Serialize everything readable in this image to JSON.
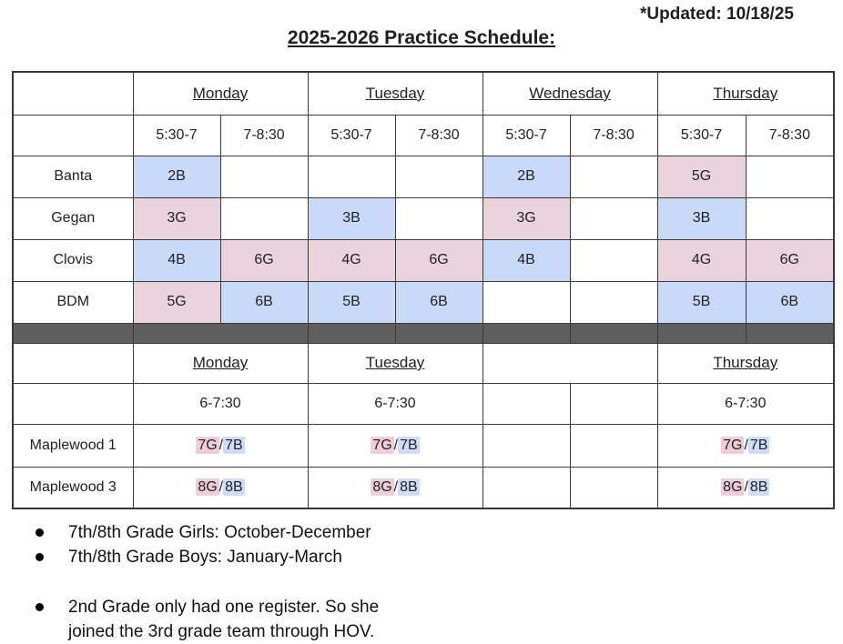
{
  "page": {
    "updated_note": "*Updated: 10/18/25",
    "title": "2025-2026 Practice Schedule:"
  },
  "colors": {
    "cell_blue": "#c9daf8",
    "cell_pink": "#ead3dd",
    "hl_pink": "#f0ccd8",
    "hl_blue": "#cdddf6",
    "divider_gray": "#5e5e5e",
    "border": "#3a3a3a"
  },
  "schedule_table": {
    "section1": {
      "days": [
        "Monday",
        "Tuesday",
        "Wednesday",
        "Thursday"
      ],
      "time_slots": [
        "5:30-7",
        "7-8:30"
      ],
      "rows": [
        {
          "team": "Banta",
          "cells": [
            {
              "text": "2B",
              "color": "blue"
            },
            null,
            null,
            null,
            {
              "text": "2B",
              "color": "blue"
            },
            null,
            {
              "text": "5G",
              "color": "pink"
            },
            null
          ]
        },
        {
          "team": "Gegan",
          "cells": [
            {
              "text": "3G",
              "color": "pink"
            },
            null,
            {
              "text": "3B",
              "color": "blue"
            },
            null,
            {
              "text": "3G",
              "color": "pink"
            },
            null,
            {
              "text": "3B",
              "color": "blue"
            },
            null
          ]
        },
        {
          "team": "Clovis",
          "cells": [
            {
              "text": "4B",
              "color": "blue"
            },
            {
              "text": "6G",
              "color": "pink"
            },
            {
              "text": "4G",
              "color": "pink"
            },
            {
              "text": "6G",
              "color": "pink"
            },
            {
              "text": "4B",
              "color": "blue"
            },
            null,
            {
              "text": "4G",
              "color": "pink"
            },
            {
              "text": "6G",
              "color": "pink"
            }
          ]
        },
        {
          "team": "BDM",
          "cells": [
            {
              "text": "5G",
              "color": "pink"
            },
            {
              "text": "6B",
              "color": "blue"
            },
            {
              "text": "5B",
              "color": "blue"
            },
            {
              "text": "6B",
              "color": "blue"
            },
            null,
            null,
            {
              "text": "5B",
              "color": "blue"
            },
            {
              "text": "6B",
              "color": "blue"
            }
          ]
        }
      ]
    },
    "section2": {
      "days": [
        "Monday",
        "Tuesday",
        "",
        "Thursday"
      ],
      "time": "6-7:30",
      "rows": [
        {
          "team": "Maplewood 1",
          "parts": [
            [
              "7G",
              "pink"
            ],
            [
              "/",
              ""
            ],
            [
              "7B",
              "blue"
            ]
          ]
        },
        {
          "team": "Maplewood 3",
          "parts": [
            [
              "8G",
              "pink"
            ],
            [
              "/",
              ""
            ],
            [
              "8B",
              "blue"
            ]
          ]
        }
      ]
    }
  },
  "notes": {
    "bullets_group1": [
      "7th/8th Grade Girls: October-December",
      "7th/8th Grade Boys: January-March"
    ],
    "bullets_group2": [
      "2nd Grade only had one register.  So she joined the 3rd grade team through HOV."
    ]
  }
}
